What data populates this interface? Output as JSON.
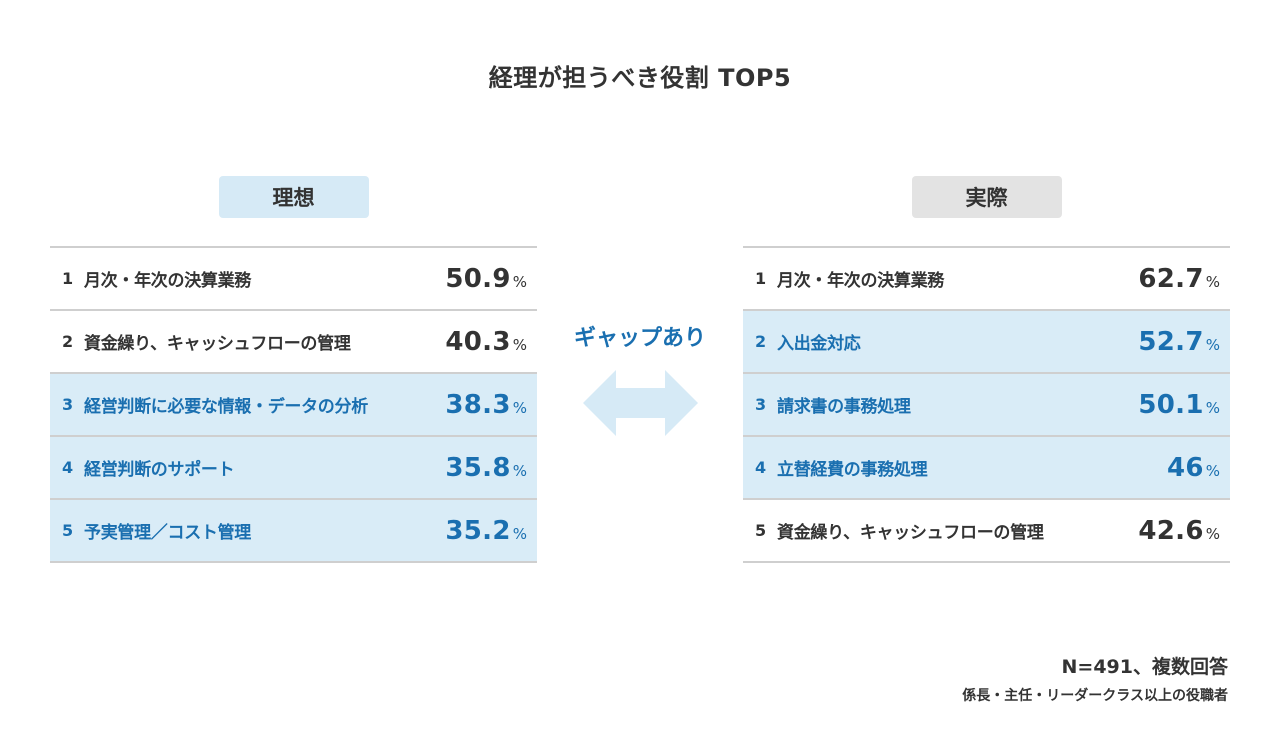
{
  "title": "経理が担うべき役割 TOP5",
  "colors": {
    "highlight_bg": "#d9ecf7",
    "highlight_text": "#1a6fb0",
    "ideal_label_bg": "#d6eaf6",
    "actual_label_bg": "#e3e3e3",
    "arrow": "#d6eaf6"
  },
  "gap_label": "ギャップあり",
  "chart_data": {
    "type": "table",
    "title": "経理が担うべき役割 TOP5",
    "unit": "%",
    "ideal": {
      "label": "理想",
      "rows": [
        {
          "rank": "1",
          "item": "月次・年次の決算業務",
          "value": 50.9,
          "value_text": "50.9",
          "highlight": false
        },
        {
          "rank": "2",
          "item": "資金繰り、キャッシュフローの管理",
          "value": 40.3,
          "value_text": "40.3",
          "highlight": false
        },
        {
          "rank": "3",
          "item": "経営判断に必要な情報・データの分析",
          "value": 38.3,
          "value_text": "38.3",
          "highlight": true
        },
        {
          "rank": "4",
          "item": "経営判断のサポート",
          "value": 35.8,
          "value_text": "35.8",
          "highlight": true
        },
        {
          "rank": "5",
          "item": "予実管理／コスト管理",
          "value": 35.2,
          "value_text": "35.2",
          "highlight": true
        }
      ]
    },
    "actual": {
      "label": "実際",
      "rows": [
        {
          "rank": "1",
          "item": "月次・年次の決算業務",
          "value": 62.7,
          "value_text": "62.7",
          "highlight": false
        },
        {
          "rank": "2",
          "item": "入出金対応",
          "value": 52.7,
          "value_text": "52.7",
          "highlight": true
        },
        {
          "rank": "3",
          "item": "請求書の事務処理",
          "value": 50.1,
          "value_text": "50.1",
          "highlight": true
        },
        {
          "rank": "4",
          "item": "立替経費の事務処理",
          "value": 46,
          "value_text": "46",
          "highlight": true
        },
        {
          "rank": "5",
          "item": "資金繰り、キャッシュフローの管理",
          "value": 42.6,
          "value_text": "42.6",
          "highlight": false
        }
      ]
    }
  },
  "notes": {
    "sample": "N=491、複数回答",
    "respondents": "係長・主任・リーダークラス以上の役職者"
  }
}
